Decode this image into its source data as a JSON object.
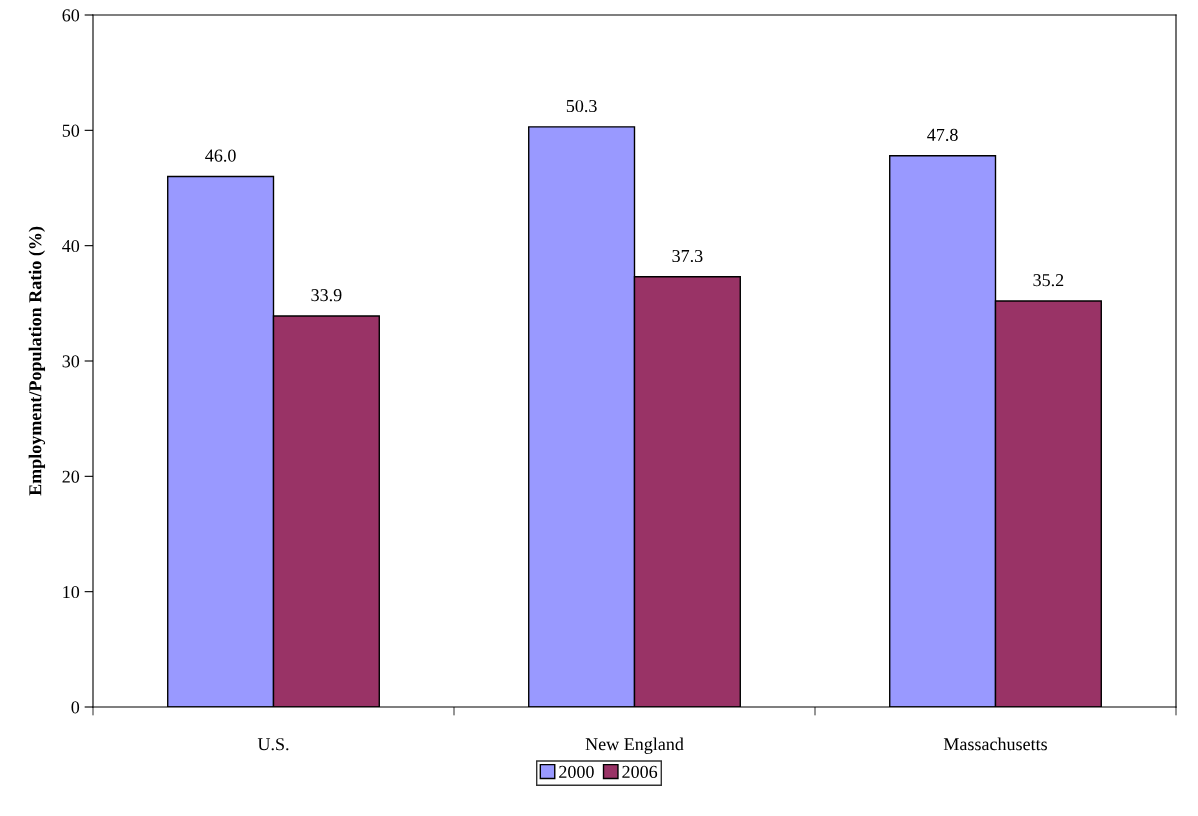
{
  "chart_data": {
    "type": "bar",
    "ylabel": "Employment/Population Ratio (%)",
    "categories": [
      "U.S.",
      "New England",
      "Massachusetts"
    ],
    "series": [
      {
        "name": "2000",
        "color": "#9999ff",
        "values": [
          46.0,
          50.3,
          47.8
        ],
        "value_labels": [
          "46.0",
          "50.3",
          "47.8"
        ]
      },
      {
        "name": "2006",
        "color": "#993366",
        "values": [
          33.9,
          37.3,
          35.2
        ],
        "value_labels": [
          "33.9",
          "37.3",
          "35.2"
        ]
      }
    ],
    "ylim": [
      0,
      60
    ],
    "yticks": [
      0,
      10,
      20,
      30,
      40,
      50,
      60
    ],
    "grid": false,
    "legend": "bottom"
  }
}
